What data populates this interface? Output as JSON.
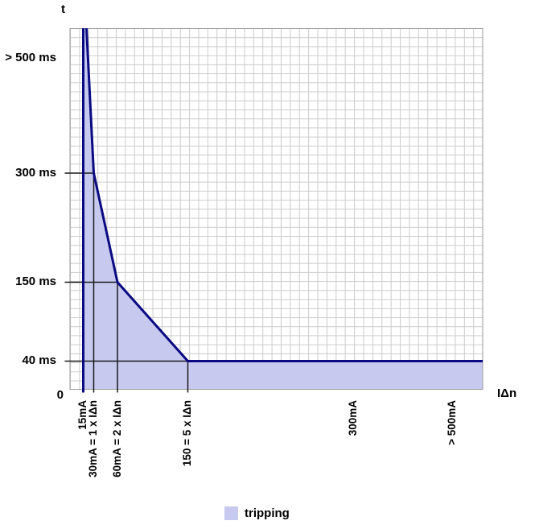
{
  "y_axis": {
    "title": "t",
    "tick_labels": [
      "> 500 ms",
      "300 ms",
      "150 ms",
      "40 ms",
      "0"
    ]
  },
  "x_axis": {
    "title": "IΔn",
    "tick_labels": [
      "15mA",
      "30mA = 1 x IΔn",
      "60mA = 2 x IΔn",
      "150 = 5 x IΔn",
      "300mA",
      "> 500mA"
    ]
  },
  "legend": {
    "label": "tripping"
  },
  "colors": {
    "fill": "#c7c9ef",
    "curve": "#0a0a82",
    "guide_line": "#1a1a1a",
    "grid": "#cbcbcb",
    "border": "#999999",
    "text": "#000000"
  },
  "chart_data": {
    "type": "area",
    "title": "",
    "xlabel": "IΔn",
    "ylabel": "t",
    "x_tick_labels": [
      "15mA",
      "30mA = 1 x IΔn",
      "60mA = 2 x IΔn",
      "150 = 5 x IΔn",
      "300mA",
      "> 500mA"
    ],
    "y_tick_labels": [
      "> 500 ms",
      "300 ms",
      "150 ms",
      "40 ms",
      "0"
    ],
    "grid": true,
    "legend_position": "bottom",
    "legend_entries": [
      "tripping"
    ],
    "series": [
      {
        "name": "tripping",
        "description": "shaded tripping region bounded left by 15mA line and above by the max tripping-time curve",
        "points": [
          {
            "x": "15mA",
            "y": "> 500 ms"
          },
          {
            "x": "30mA = 1 x IΔn",
            "y": "300 ms"
          },
          {
            "x": "60mA = 2 x IΔn",
            "y": "150 ms"
          },
          {
            "x": "150 = 5 x IΔn",
            "y": "40 ms"
          },
          {
            "x": "> 500mA",
            "y": "40 ms"
          }
        ]
      }
    ]
  }
}
